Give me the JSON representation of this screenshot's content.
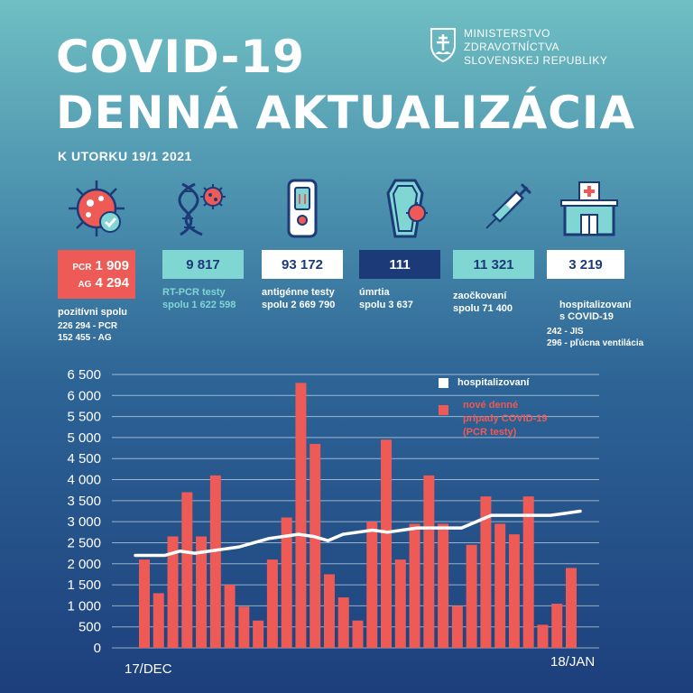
{
  "header": {
    "title_line1": "COVID-19",
    "title_line2": "DENNÁ AKTUALIZÁCIA",
    "ministry": [
      "MINISTERSTVO",
      "ZDRAVOTNÍCTVA",
      "SLOVENSKEJ REPUBLIKY"
    ],
    "date": "K UTORKU 19/1 2021"
  },
  "stats": {
    "positive": {
      "pcr_prefix": "PCR",
      "pcr_value": "1 909",
      "ag_prefix": "AG",
      "ag_value": "4 294",
      "label": "pozitívni spolu",
      "detail1": "226 294 - PCR",
      "detail2": "152 455 - AG"
    },
    "rtpcr": {
      "value": "9 817",
      "label1": "RT-PCR testy",
      "label2": "spolu 1 622 598"
    },
    "antigen": {
      "value": "93 172",
      "label1": "antigénne testy",
      "label2": "spolu 2 669 790"
    },
    "deaths": {
      "value": "111",
      "label1": "úmrtia",
      "label2": "spolu 3 637"
    },
    "vaccinated": {
      "value": "11 321",
      "label1": "zaočkovaní",
      "label2": "spolu 71 400"
    },
    "hospitalized": {
      "value": "3 219",
      "label1": "hospitalizovaní",
      "label2": "s COVID-19",
      "detail1": "242 - JIS",
      "detail2": "296 - pľúcna ventilácia"
    }
  },
  "colors": {
    "bar": "#ee5a56",
    "line": "#ffffff",
    "teal_box": "#7fd6d2",
    "navy_box": "#1d3a78"
  },
  "icons": [
    "virus-icon",
    "dna-virus-icon",
    "antigen-test-icon",
    "coffin-icon",
    "syringe-icon",
    "hospital-icon"
  ],
  "legend": {
    "line_label": "hospitalizovaní",
    "bar_label_lines": [
      "nové denné",
      "prípady COVID-19",
      "(PCR testy)"
    ]
  },
  "chart_data": {
    "type": "bar",
    "x_start_label": "17/DEC",
    "x_end_label": "18/JAN",
    "ylim": [
      0,
      6500
    ],
    "yticks": [
      "0",
      "500",
      "1 000",
      "1 500",
      "2 000",
      "2 500",
      "3 000",
      "3 500",
      "4 000",
      "4 500",
      "5 000",
      "5 500",
      "6 000",
      "6 500"
    ],
    "grid": true,
    "series": [
      {
        "name": "nové denné prípady COVID-19 (PCR testy)",
        "kind": "bar",
        "values": [
          2100,
          1300,
          2650,
          3700,
          2650,
          4100,
          1500,
          980,
          650,
          2100,
          3100,
          6300,
          4850,
          1750,
          1200,
          650,
          3000,
          4950,
          2100,
          2950,
          4100,
          2950,
          1000,
          2450,
          3600,
          2950,
          2700,
          3600,
          550,
          1050,
          1900
        ]
      },
      {
        "name": "hospitalizovaní",
        "kind": "line",
        "values": [
          2200,
          2200,
          2200,
          2300,
          2250,
          2300,
          2350,
          2400,
          2500,
          2600,
          2650,
          2700,
          2650,
          2550,
          2700,
          2750,
          2800,
          2750,
          2800,
          2850,
          2850,
          2850,
          2850,
          3000,
          3150,
          3150,
          3150,
          3150,
          3150,
          3200,
          3250
        ]
      }
    ]
  }
}
